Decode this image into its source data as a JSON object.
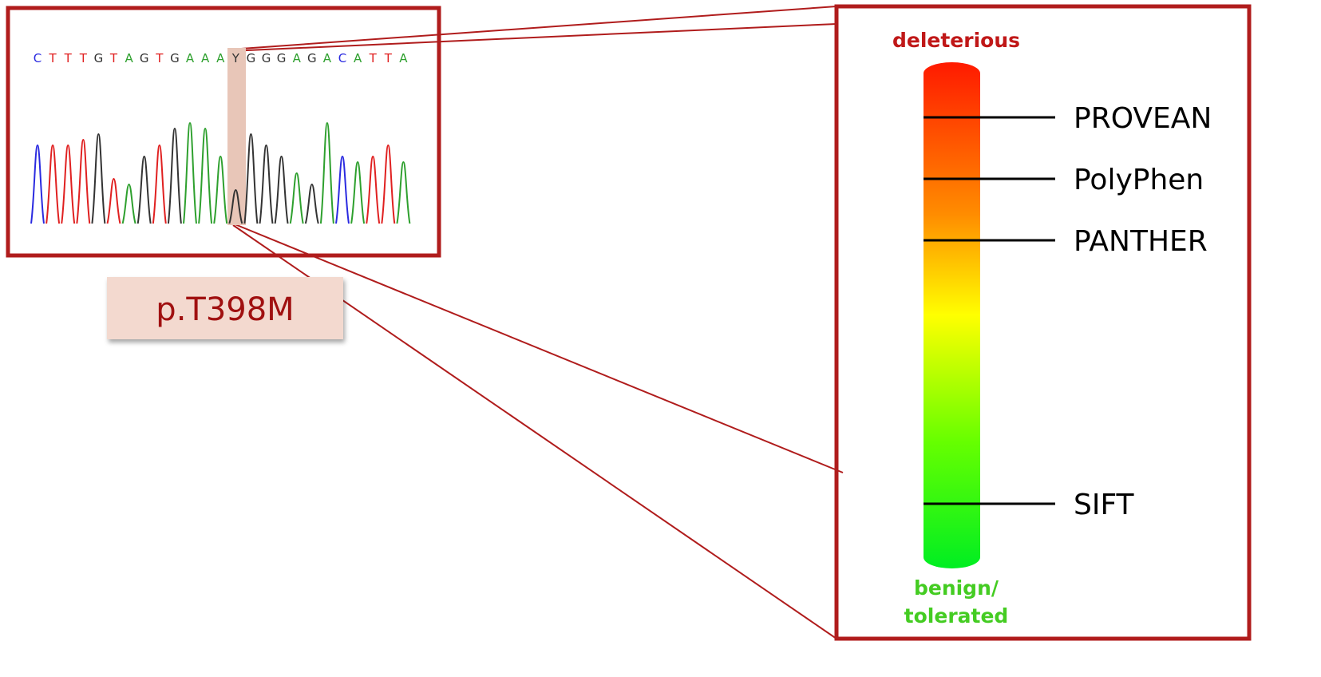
{
  "chromatogram": {
    "bases": [
      "C",
      "T",
      "T",
      "T",
      "G",
      "T",
      "A",
      "G",
      "T",
      "G",
      "A",
      "A",
      "A",
      "Y",
      "G",
      "G",
      "G",
      "A",
      "G",
      "A",
      "C",
      "A",
      "T",
      "T",
      "A"
    ],
    "base_colors": {
      "A": "#2ea02e",
      "C": "#2a2ae0",
      "G": "#333333",
      "T": "#e02020",
      "Y": "#333333"
    },
    "variant_label": "p.T398M"
  },
  "scale": {
    "top_label": "deleterious",
    "bottom_label": [
      "benign/",
      "tolerated"
    ],
    "tools": [
      "PROVEAN",
      "PolyPhen",
      "PANTHER",
      "SIFT"
    ]
  }
}
